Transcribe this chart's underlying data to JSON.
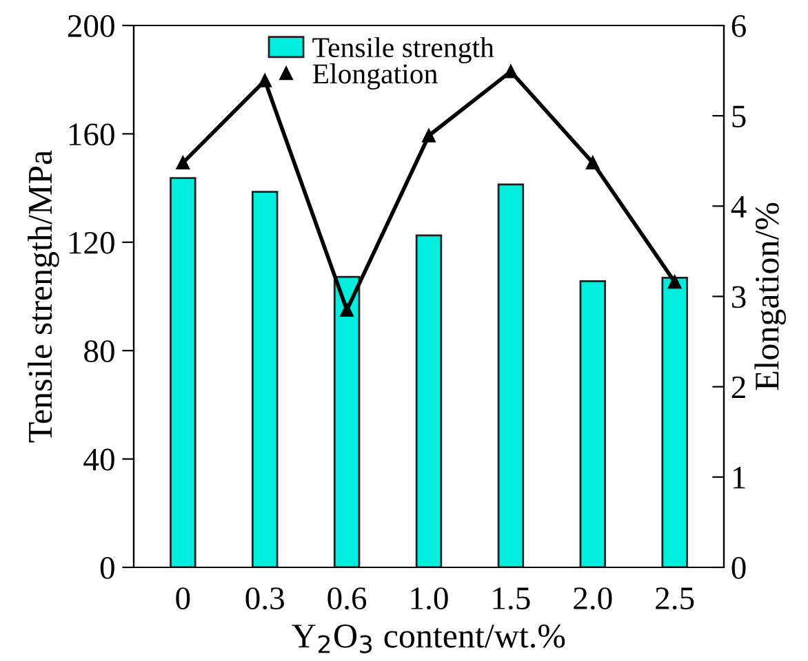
{
  "chart_data": {
    "type": "bar",
    "xlabel": "Y$_{2}$O$_{3}$ content/wt.%",
    "ylabel": "Tensile strength/MPa",
    "y2label": "Elongation/%",
    "categories": [
      "0",
      "0.3",
      "0.6",
      "1.0",
      "1.5",
      "2.0",
      "2.5"
    ],
    "series": [
      {
        "name": "Tensile strength",
        "color": "#00eedd",
        "values": [
          143.7,
          138.6,
          107.2,
          122.5,
          141.3,
          105.6,
          106.9
        ]
      },
      {
        "name": "Elongation",
        "type": "line",
        "axis": "y2",
        "color": "#000000",
        "marker": "triangle",
        "values": [
          4.48,
          5.39,
          2.85,
          4.78,
          5.49,
          4.48,
          3.16
        ]
      }
    ],
    "ylim": [
      0,
      200
    ],
    "yticks": [
      0,
      40,
      80,
      120,
      160,
      200
    ],
    "y2lim": [
      0,
      6
    ],
    "y2ticks": [
      0,
      1,
      2,
      3,
      4,
      5,
      6
    ],
    "legend": "top",
    "grid": false
  }
}
